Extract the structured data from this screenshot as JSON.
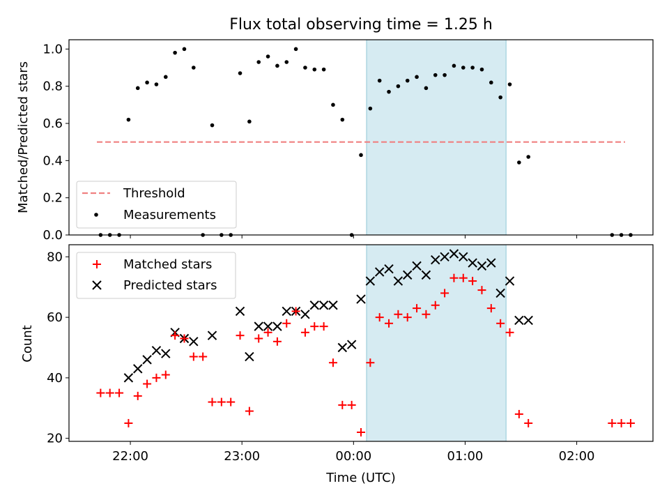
{
  "chart_data": [
    {
      "type": "scatter",
      "title": "Flux total observing time = 1.25 h",
      "xlabel": "",
      "ylabel": "Matched/Predicted stars",
      "ylim": [
        0,
        1.05
      ],
      "yticks": [
        "0.0",
        "0.2",
        "0.4",
        "0.6",
        "0.8",
        "1.0"
      ],
      "xlim": [
        "21:27",
        "02:41"
      ],
      "legend": "lower-left",
      "highlight_span": {
        "start": "00:07",
        "end": "01:22",
        "color": "#add8e6"
      },
      "threshold": {
        "name": "Threshold",
        "value": 0.5,
        "x_start": "21:42",
        "x_end": "02:26",
        "color": "#f08080"
      },
      "series": [
        {
          "name": "Measurements",
          "color": "#000000",
          "marker": "dot",
          "x": [
            "21:44",
            "21:49",
            "21:54",
            "21:59",
            "22:04",
            "22:09",
            "22:14",
            "22:19",
            "22:24",
            "22:29",
            "22:34",
            "22:39",
            "22:44",
            "22:49",
            "22:54",
            "22:59",
            "23:04",
            "23:09",
            "23:14",
            "23:19",
            "23:24",
            "23:29",
            "23:34",
            "23:39",
            "23:44",
            "23:49",
            "23:54",
            "23:59",
            "00:04",
            "00:09",
            "00:14",
            "00:19",
            "00:24",
            "00:29",
            "00:34",
            "00:39",
            "00:44",
            "00:49",
            "00:54",
            "00:59",
            "01:04",
            "01:09",
            "01:14",
            "01:19",
            "01:24",
            "01:29",
            "01:34",
            "02:19",
            "02:24",
            "02:29"
          ],
          "y": [
            0,
            0,
            0,
            0.62,
            0.79,
            0.82,
            0.81,
            0.85,
            0.98,
            1.0,
            0.9,
            0,
            0.59,
            0,
            0,
            0.87,
            0.61,
            0.93,
            0.96,
            0.91,
            0.93,
            1.0,
            0.9,
            0.89,
            0.89,
            0.7,
            0.62,
            0,
            0.43,
            0.68,
            0.83,
            0.77,
            0.8,
            0.83,
            0.85,
            0.79,
            0.86,
            0.86,
            0.91,
            0.9,
            0.9,
            0.89,
            0.82,
            0.74,
            0.81,
            0.39,
            0.42,
            0,
            0,
            0
          ]
        }
      ]
    },
    {
      "type": "scatter",
      "title": "",
      "xlabel": "Time (UTC)",
      "ylabel": "Count",
      "ylim": [
        19,
        84
      ],
      "yticks": [
        "20",
        "40",
        "60",
        "80"
      ],
      "xticks": [
        "22:00",
        "23:00",
        "00:00",
        "01:00",
        "02:00"
      ],
      "xlim": [
        "21:27",
        "02:41"
      ],
      "legend": "top-left",
      "highlight_span": {
        "start": "00:07",
        "end": "01:22",
        "color": "#add8e6"
      },
      "series": [
        {
          "name": "Matched stars",
          "color": "#ff0000",
          "marker": "plus",
          "x": [
            "21:44",
            "21:49",
            "21:54",
            "21:59",
            "22:04",
            "22:09",
            "22:14",
            "22:19",
            "22:24",
            "22:29",
            "22:34",
            "22:39",
            "22:44",
            "22:49",
            "22:54",
            "22:59",
            "23:04",
            "23:09",
            "23:14",
            "23:19",
            "23:24",
            "23:29",
            "23:34",
            "23:39",
            "23:44",
            "23:49",
            "23:54",
            "23:59",
            "00:04",
            "00:09",
            "00:14",
            "00:19",
            "00:24",
            "00:29",
            "00:34",
            "00:39",
            "00:44",
            "00:49",
            "00:54",
            "00:59",
            "01:04",
            "01:09",
            "01:14",
            "01:19",
            "01:24",
            "01:29",
            "01:34",
            "02:19",
            "02:24",
            "02:29"
          ],
          "y": [
            35,
            35,
            35,
            25,
            34,
            38,
            40,
            41,
            54,
            53,
            47,
            47,
            32,
            32,
            32,
            54,
            29,
            53,
            55,
            52,
            58,
            62,
            55,
            57,
            57,
            45,
            31,
            31,
            22,
            45,
            60,
            58,
            61,
            60,
            63,
            61,
            64,
            68,
            73,
            73,
            72,
            69,
            63,
            58,
            55,
            28,
            25,
            25,
            25,
            25
          ]
        },
        {
          "name": "Predicted stars",
          "color": "#000000",
          "marker": "x",
          "x": [
            "21:59",
            "22:04",
            "22:09",
            "22:14",
            "22:19",
            "22:24",
            "22:29",
            "22:34",
            "22:44",
            "22:59",
            "23:04",
            "23:09",
            "23:14",
            "23:19",
            "23:24",
            "23:29",
            "23:34",
            "23:39",
            "23:44",
            "23:49",
            "23:54",
            "23:59",
            "00:04",
            "00:09",
            "00:14",
            "00:19",
            "00:24",
            "00:29",
            "00:34",
            "00:39",
            "00:44",
            "00:49",
            "00:54",
            "00:59",
            "01:04",
            "01:09",
            "01:14",
            "01:19",
            "01:24",
            "01:29",
            "01:34"
          ],
          "y": [
            40,
            43,
            46,
            49,
            48,
            55,
            53,
            52,
            54,
            62,
            47,
            57,
            57,
            57,
            62,
            62,
            61,
            64,
            64,
            64,
            50,
            51,
            66,
            72,
            75,
            76,
            72,
            74,
            77,
            74,
            79,
            80,
            81,
            80,
            78,
            77,
            78,
            68,
            72,
            59,
            59
          ]
        }
      ]
    }
  ]
}
